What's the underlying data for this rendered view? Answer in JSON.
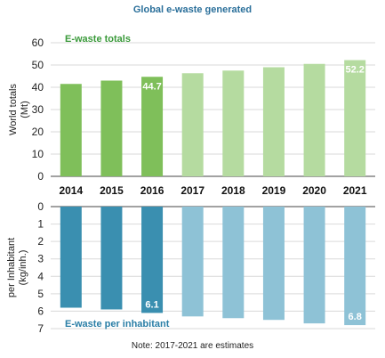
{
  "title": "Global e-waste generated",
  "note": "Note: 2017-2021 are estimates",
  "chart_data": [
    {
      "type": "bar",
      "title": "",
      "series_label": "E-waste totals",
      "ylabel": "World totals (Mt)",
      "ylim": [
        0,
        60
      ],
      "yticks": [
        0,
        10,
        20,
        30,
        40,
        50,
        60
      ],
      "categories": [
        "2014",
        "2015",
        "2016",
        "2017",
        "2018",
        "2019",
        "2020",
        "2021"
      ],
      "values": [
        41.5,
        43.0,
        44.7,
        46.3,
        47.5,
        49.0,
        50.5,
        52.2
      ],
      "estimated": [
        false,
        false,
        false,
        true,
        true,
        true,
        true,
        true
      ],
      "data_labels": {
        "2016": "44.7",
        "2021": "52.2"
      },
      "colors": {
        "actual": "#7fbf5a",
        "estimate": "#b5dba0"
      }
    },
    {
      "type": "bar",
      "title": "",
      "series_label": "E-waste per inhabitant",
      "ylabel": "per Inhabitant (kg/inh.)",
      "ylim": [
        0,
        7
      ],
      "yticks": [
        0,
        1,
        2,
        3,
        4,
        5,
        6,
        7
      ],
      "inverted": true,
      "categories": [
        "2014",
        "2015",
        "2016",
        "2017",
        "2018",
        "2019",
        "2020",
        "2021"
      ],
      "values": [
        5.8,
        5.9,
        6.1,
        6.3,
        6.4,
        6.5,
        6.7,
        6.8
      ],
      "estimated": [
        false,
        false,
        false,
        true,
        true,
        true,
        true,
        true
      ],
      "data_labels": {
        "2016": "6.1",
        "2021": "6.8"
      },
      "colors": {
        "actual": "#3a8fb0",
        "estimate": "#8ec2d6"
      }
    }
  ]
}
